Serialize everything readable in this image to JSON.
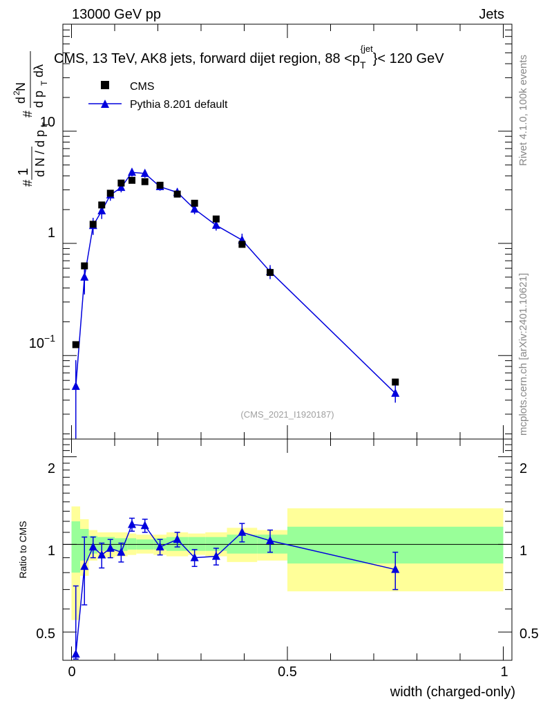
{
  "header": {
    "beam_label": "13000 GeV pp",
    "category_label": "Jets",
    "plot_title": "CMS, 13 TeV, AK8 jets, forward dijet region, 88 <p",
    "plot_title_sub": "T",
    "plot_title_sup": "{jet",
    "plot_title_tail": "}< 120 GeV",
    "analysis_tag": "(CMS_2021_I1920187)"
  },
  "side_labels": {
    "rivet": "Rivet 4.1.0,  100k events",
    "source": "mcplots.cern.ch [arXiv:2401.10621]"
  },
  "legend": {
    "data_label": "CMS",
    "mc_label": "Pythia 8.201 default"
  },
  "axes": {
    "xlabel": "width (charged-only)",
    "ratio_ylabel": "Ratio to CMS",
    "x_ticks": [
      "0",
      "0.5",
      "1"
    ],
    "main_y_ticks": [
      "10",
      "1"
    ],
    "main_y_tick_power": {
      "base": "10",
      "exp": "−1"
    },
    "ratio_y_ticks": [
      "2",
      "1",
      "0.5"
    ]
  },
  "colors": {
    "mc": "#0000dd",
    "data": "#000000",
    "band_inner": "#99ff99",
    "band_outer": "#ffff99"
  },
  "chart_data": {
    "type": "scatter",
    "log_y": true,
    "xlim": [
      -0.02,
      1.02
    ],
    "ylim": [
      0.018,
      90
    ],
    "ratio_ylim": [
      0.4,
      2.3
    ],
    "ylabel": "1/dN/dp_T dN/dp_T dλ",
    "cms": {
      "x": [
        0.01,
        0.03,
        0.05,
        0.07,
        0.09,
        0.115,
        0.14,
        0.17,
        0.205,
        0.245,
        0.285,
        0.335,
        0.395,
        0.46,
        0.75
      ],
      "y": [
        0.125,
        0.63,
        1.48,
        2.2,
        2.8,
        3.45,
        3.65,
        3.55,
        3.3,
        2.75,
        2.28,
        1.65,
        0.98,
        0.55,
        0.058
      ]
    },
    "pythia": {
      "x": [
        0.01,
        0.03,
        0.05,
        0.07,
        0.09,
        0.115,
        0.14,
        0.17,
        0.205,
        0.245,
        0.285,
        0.335,
        0.395,
        0.46,
        0.75
      ],
      "y": [
        0.053,
        0.5,
        1.44,
        1.95,
        2.7,
        3.15,
        4.3,
        4.2,
        3.2,
        2.85,
        2.02,
        1.45,
        1.07,
        0.56,
        0.046
      ],
      "err_low": [
        0.035,
        0.15,
        0.25,
        0.3,
        0.3,
        0.3,
        0.35,
        0.35,
        0.25,
        0.25,
        0.2,
        0.15,
        0.15,
        0.08,
        0.008
      ],
      "err_high": [
        0.038,
        0.15,
        0.25,
        0.3,
        0.3,
        0.3,
        0.35,
        0.35,
        0.25,
        0.25,
        0.2,
        0.15,
        0.15,
        0.08,
        0.008
      ]
    },
    "ratio": {
      "x": [
        0.01,
        0.03,
        0.05,
        0.07,
        0.09,
        0.115,
        0.14,
        0.17,
        0.205,
        0.245,
        0.285,
        0.335,
        0.395,
        0.46,
        0.75
      ],
      "y": [
        0.42,
        0.84,
        0.98,
        0.92,
        0.97,
        0.94,
        1.17,
        1.16,
        0.98,
        1.04,
        0.9,
        0.91,
        1.1,
        1.03,
        0.82
      ],
      "err": [
        0.3,
        0.22,
        0.08,
        0.09,
        0.07,
        0.07,
        0.06,
        0.06,
        0.06,
        0.06,
        0.06,
        0.06,
        0.08,
        0.09,
        0.12
      ]
    },
    "bands": [
      {
        "x0": 0.0,
        "x1": 0.02,
        "inner": [
          0.8,
          1.2
        ],
        "outer": [
          0.55,
          1.35
        ]
      },
      {
        "x0": 0.02,
        "x1": 0.04,
        "inner": [
          0.88,
          1.13
        ],
        "outer": [
          0.78,
          1.22
        ]
      },
      {
        "x0": 0.04,
        "x1": 0.06,
        "inner": [
          0.93,
          1.07
        ],
        "outer": [
          0.88,
          1.12
        ]
      },
      {
        "x0": 0.06,
        "x1": 0.08,
        "inner": [
          0.95,
          1.06
        ],
        "outer": [
          0.9,
          1.1
        ]
      },
      {
        "x0": 0.08,
        "x1": 0.1,
        "inner": [
          0.95,
          1.06
        ],
        "outer": [
          0.9,
          1.1
        ]
      },
      {
        "x0": 0.1,
        "x1": 0.13,
        "inner": [
          0.95,
          1.05
        ],
        "outer": [
          0.91,
          1.1
        ]
      },
      {
        "x0": 0.13,
        "x1": 0.15,
        "inner": [
          0.96,
          1.05
        ],
        "outer": [
          0.92,
          1.09
        ]
      },
      {
        "x0": 0.15,
        "x1": 0.19,
        "inner": [
          0.96,
          1.04
        ],
        "outer": [
          0.93,
          1.08
        ]
      },
      {
        "x0": 0.19,
        "x1": 0.22,
        "inner": [
          0.96,
          1.05
        ],
        "outer": [
          0.92,
          1.08
        ]
      },
      {
        "x0": 0.22,
        "x1": 0.27,
        "inner": [
          0.95,
          1.06
        ],
        "outer": [
          0.91,
          1.1
        ]
      },
      {
        "x0": 0.27,
        "x1": 0.31,
        "inner": [
          0.95,
          1.06
        ],
        "outer": [
          0.92,
          1.09
        ]
      },
      {
        "x0": 0.31,
        "x1": 0.36,
        "inner": [
          0.95,
          1.06
        ],
        "outer": [
          0.91,
          1.1
        ]
      },
      {
        "x0": 0.36,
        "x1": 0.43,
        "inner": [
          0.93,
          1.08
        ],
        "outer": [
          0.87,
          1.14
        ]
      },
      {
        "x0": 0.43,
        "x1": 0.5,
        "inner": [
          0.93,
          1.08
        ],
        "outer": [
          0.88,
          1.12
        ]
      },
      {
        "x0": 0.5,
        "x1": 1.0,
        "inner": [
          0.86,
          1.15
        ],
        "outer": [
          0.69,
          1.33
        ]
      }
    ]
  }
}
